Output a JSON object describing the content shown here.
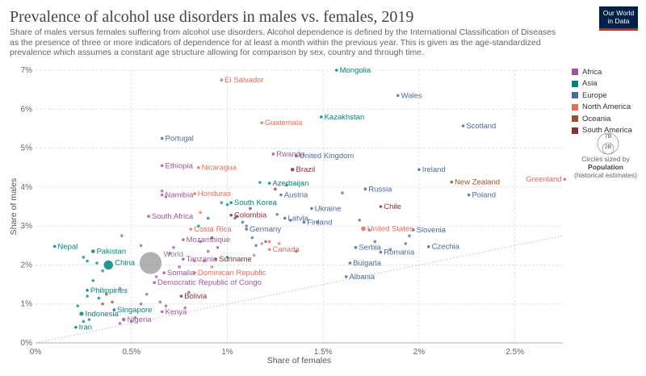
{
  "header": {
    "title": "Prevalence of alcohol use disorders in males vs. females, 2019",
    "subtitle": "Share of males versus females suffering from alcohol use disorders. Alcohol dependence is defined by the International Classification of Diseases as the presence of three or more indicators of dependence for at least a month within the previous year. This is given as the age-standardized prevalence which assumes a constant age structure allowing for comparison by sex, country and through time.",
    "logo_line1": "Our World",
    "logo_line2": "in Data"
  },
  "legend": {
    "items": [
      {
        "label": "Africa",
        "color": "#a2559c"
      },
      {
        "label": "Asia",
        "color": "#00847e"
      },
      {
        "label": "Europe",
        "color": "#4c6a9c"
      },
      {
        "label": "North America",
        "color": "#e56e5a"
      },
      {
        "label": "Oceania",
        "color": "#9a5129"
      },
      {
        "label": "South America",
        "color": "#883039"
      }
    ],
    "size_big": "7B",
    "size_small": "2B",
    "size_note_line1": "Circles sized by",
    "size_note_bold": "Population",
    "size_note_line2": "(historical estimates)"
  },
  "chart_data": {
    "type": "scatter",
    "title": "Prevalence of alcohol use disorders in males vs. females, 2019",
    "xlabel": "Share of females",
    "ylabel": "Share of males",
    "xlim": [
      0,
      2.75
    ],
    "ylim": [
      0,
      7
    ],
    "xticks": [
      "0%",
      "0.5%",
      "1%",
      "1.5%",
      "2%",
      "2.5%"
    ],
    "yticks": [
      "0%",
      "1%",
      "2%",
      "3%",
      "4%",
      "5%",
      "6%",
      "7%"
    ],
    "grid": true,
    "legend_position": "right",
    "reference_line": "y = x",
    "labeled_points": [
      {
        "name": "El Salvador",
        "x": 0.97,
        "y": 6.75,
        "region": "North America",
        "pop": 0.006
      },
      {
        "name": "Mongolia",
        "x": 1.57,
        "y": 7.0,
        "region": "Asia",
        "pop": 0.003
      },
      {
        "name": "Wales",
        "x": 1.89,
        "y": 6.35,
        "region": "Europe",
        "pop": 0.003
      },
      {
        "name": "Kazakhstan",
        "x": 1.49,
        "y": 5.8,
        "region": "Asia",
        "pop": 0.018
      },
      {
        "name": "Scotland",
        "x": 2.23,
        "y": 5.57,
        "region": "Europe",
        "pop": 0.005
      },
      {
        "name": "Guatemala",
        "x": 1.18,
        "y": 5.65,
        "region": "North America",
        "pop": 0.017
      },
      {
        "name": "Portugal",
        "x": 0.66,
        "y": 5.25,
        "region": "Europe",
        "pop": 0.01
      },
      {
        "name": "Rwanda",
        "x": 1.24,
        "y": 4.85,
        "region": "Africa",
        "pop": 0.013
      },
      {
        "name": "United Kingdom",
        "x": 1.36,
        "y": 4.8,
        "region": "Europe",
        "pop": 0.067
      },
      {
        "name": "Ethiopia",
        "x": 0.66,
        "y": 4.55,
        "region": "Africa",
        "pop": 0.112
      },
      {
        "name": "Nicaragua",
        "x": 0.85,
        "y": 4.5,
        "region": "North America",
        "pop": 0.006
      },
      {
        "name": "Brazil",
        "x": 1.34,
        "y": 4.45,
        "region": "South America",
        "pop": 0.211
      },
      {
        "name": "Ireland",
        "x": 2.0,
        "y": 4.45,
        "region": "Europe",
        "pop": 0.005
      },
      {
        "name": "Greenland",
        "x": 2.76,
        "y": 4.2,
        "region": "North America",
        "pop": 0.0001
      },
      {
        "name": "New Zealand",
        "x": 2.17,
        "y": 4.13,
        "region": "Oceania",
        "pop": 0.005
      },
      {
        "name": "Azerbaijan",
        "x": 1.22,
        "y": 4.1,
        "region": "Asia",
        "pop": 0.01
      },
      {
        "name": "Russia",
        "x": 1.72,
        "y": 3.95,
        "region": "Europe",
        "pop": 0.145
      },
      {
        "name": "Namibia",
        "x": 0.66,
        "y": 3.8,
        "region": "Africa",
        "pop": 0.0025
      },
      {
        "name": "Honduras",
        "x": 0.83,
        "y": 3.83,
        "region": "North America",
        "pop": 0.0097
      },
      {
        "name": "Austria",
        "x": 1.28,
        "y": 3.8,
        "region": "Europe",
        "pop": 0.009
      },
      {
        "name": "Poland",
        "x": 2.26,
        "y": 3.8,
        "region": "Europe",
        "pop": 0.038
      },
      {
        "name": "South Korea",
        "x": 1.02,
        "y": 3.6,
        "region": "Asia",
        "pop": 0.052
      },
      {
        "name": "Ukraine",
        "x": 1.44,
        "y": 3.45,
        "region": "Europe",
        "pop": 0.044
      },
      {
        "name": "Chile",
        "x": 1.8,
        "y": 3.5,
        "region": "South America",
        "pop": 0.019
      },
      {
        "name": "South Africa",
        "x": 0.59,
        "y": 3.25,
        "region": "Africa",
        "pop": 0.058
      },
      {
        "name": "Colombia",
        "x": 1.02,
        "y": 3.28,
        "region": "South America",
        "pop": 0.05
      },
      {
        "name": "Latvia",
        "x": 1.3,
        "y": 3.2,
        "region": "Europe",
        "pop": 0.002
      },
      {
        "name": "Finland",
        "x": 1.4,
        "y": 3.1,
        "region": "Europe",
        "pop": 0.0055
      },
      {
        "name": "Costa Rica",
        "x": 0.81,
        "y": 2.92,
        "region": "North America",
        "pop": 0.005
      },
      {
        "name": "Germany",
        "x": 1.1,
        "y": 2.92,
        "region": "Europe",
        "pop": 0.083
      },
      {
        "name": "United States",
        "x": 1.71,
        "y": 2.93,
        "region": "North America",
        "pop": 0.329
      },
      {
        "name": "Slovenia",
        "x": 1.97,
        "y": 2.9,
        "region": "Europe",
        "pop": 0.002
      },
      {
        "name": "Mozambique",
        "x": 0.77,
        "y": 2.65,
        "region": "Africa",
        "pop": 0.03
      },
      {
        "name": "Pakistan",
        "x": 0.3,
        "y": 2.35,
        "region": "Asia",
        "pop": 0.217
      },
      {
        "name": "Nepal",
        "x": 0.1,
        "y": 2.48,
        "region": "Asia",
        "pop": 0.029
      },
      {
        "name": "Czechia",
        "x": 2.05,
        "y": 2.47,
        "region": "Europe",
        "pop": 0.0107
      },
      {
        "name": "Serbia",
        "x": 1.67,
        "y": 2.45,
        "region": "Europe",
        "pop": 0.0069
      },
      {
        "name": "Canada",
        "x": 1.22,
        "y": 2.4,
        "region": "North America",
        "pop": 0.038
      },
      {
        "name": "Romania",
        "x": 1.8,
        "y": 2.33,
        "region": "Europe",
        "pop": 0.019
      },
      {
        "name": "World",
        "x": 0.6,
        "y": 2.05,
        "region": "World",
        "pop": 7.7
      },
      {
        "name": "China",
        "x": 0.38,
        "y": 2.0,
        "region": "Asia",
        "pop": 1.43
      },
      {
        "name": "Tanzania",
        "x": 0.77,
        "y": 2.15,
        "region": "Africa",
        "pop": 0.058
      },
      {
        "name": "Suriname",
        "x": 0.94,
        "y": 2.15,
        "region": "South America",
        "pop": 0.0006
      },
      {
        "name": "Bulgaria",
        "x": 1.64,
        "y": 2.05,
        "region": "Europe",
        "pop": 0.007
      },
      {
        "name": "Somalia",
        "x": 0.67,
        "y": 1.8,
        "region": "Africa",
        "pop": 0.015
      },
      {
        "name": "Dominican Republic",
        "x": 0.83,
        "y": 1.8,
        "region": "North America",
        "pop": 0.0107
      },
      {
        "name": "Albania",
        "x": 1.62,
        "y": 1.7,
        "region": "Europe",
        "pop": 0.0029
      },
      {
        "name": "Democratic Republic of Congo",
        "x": 0.62,
        "y": 1.55,
        "region": "Africa",
        "pop": 0.087
      },
      {
        "name": "Philippines",
        "x": 0.27,
        "y": 1.35,
        "region": "Asia",
        "pop": 0.108
      },
      {
        "name": "Bolivia",
        "x": 0.76,
        "y": 1.2,
        "region": "South America",
        "pop": 0.0115
      },
      {
        "name": "Singapore",
        "x": 0.41,
        "y": 0.85,
        "region": "Asia",
        "pop": 0.0058
      },
      {
        "name": "Indonesia",
        "x": 0.24,
        "y": 0.75,
        "region": "Asia",
        "pop": 0.27
      },
      {
        "name": "Kenya",
        "x": 0.66,
        "y": 0.8,
        "region": "Africa",
        "pop": 0.052
      },
      {
        "name": "Nigeria",
        "x": 0.46,
        "y": 0.6,
        "region": "Africa",
        "pop": 0.2
      },
      {
        "name": "Iran",
        "x": 0.21,
        "y": 0.4,
        "region": "Asia",
        "pop": 0.083
      }
    ],
    "unlabeled_points": [
      {
        "x": 0.27,
        "y": 2.1,
        "region": "Asia"
      },
      {
        "x": 0.25,
        "y": 2.2,
        "region": "Asia"
      },
      {
        "x": 0.32,
        "y": 2.05,
        "region": "Asia"
      },
      {
        "x": 0.35,
        "y": 1.85,
        "region": "Asia"
      },
      {
        "x": 0.3,
        "y": 1.6,
        "region": "Asia"
      },
      {
        "x": 0.27,
        "y": 1.2,
        "region": "Asia"
      },
      {
        "x": 0.33,
        "y": 1.15,
        "region": "Asia"
      },
      {
        "x": 0.22,
        "y": 0.95,
        "region": "Asia"
      },
      {
        "x": 0.28,
        "y": 0.6,
        "region": "Asia"
      },
      {
        "x": 0.25,
        "y": 0.55,
        "region": "Asia"
      },
      {
        "x": 0.35,
        "y": 1.0,
        "region": "Oceania"
      },
      {
        "x": 0.37,
        "y": 1.25,
        "region": "Oceania"
      },
      {
        "x": 0.4,
        "y": 1.05,
        "region": "Oceania"
      },
      {
        "x": 0.44,
        "y": 1.4,
        "region": "Africa"
      },
      {
        "x": 0.5,
        "y": 0.55,
        "region": "Africa"
      },
      {
        "x": 0.52,
        "y": 0.65,
        "region": "Africa"
      },
      {
        "x": 0.44,
        "y": 0.5,
        "region": "Africa"
      },
      {
        "x": 0.55,
        "y": 1.0,
        "region": "Africa"
      },
      {
        "x": 0.58,
        "y": 1.25,
        "region": "Africa"
      },
      {
        "x": 0.63,
        "y": 1.7,
        "region": "Africa"
      },
      {
        "x": 0.7,
        "y": 2.3,
        "region": "Africa"
      },
      {
        "x": 0.72,
        "y": 2.45,
        "region": "Africa"
      },
      {
        "x": 0.75,
        "y": 1.95,
        "region": "Africa"
      },
      {
        "x": 0.68,
        "y": 0.95,
        "region": "Africa"
      },
      {
        "x": 0.65,
        "y": 1.05,
        "region": "Africa"
      },
      {
        "x": 0.78,
        "y": 0.9,
        "region": "Africa"
      },
      {
        "x": 0.8,
        "y": 1.3,
        "region": "Africa"
      },
      {
        "x": 0.88,
        "y": 2.1,
        "region": "Africa"
      },
      {
        "x": 0.9,
        "y": 2.35,
        "region": "Africa"
      },
      {
        "x": 0.86,
        "y": 2.6,
        "region": "Africa"
      },
      {
        "x": 0.95,
        "y": 2.45,
        "region": "Africa"
      },
      {
        "x": 0.68,
        "y": 3.75,
        "region": "Africa"
      },
      {
        "x": 0.66,
        "y": 3.9,
        "region": "Africa"
      },
      {
        "x": 0.97,
        "y": 3.6,
        "region": "Europe"
      },
      {
        "x": 1.04,
        "y": 3.2,
        "region": "Europe"
      },
      {
        "x": 1.08,
        "y": 3.1,
        "region": "Europe"
      },
      {
        "x": 1.1,
        "y": 3.0,
        "region": "Europe"
      },
      {
        "x": 1.13,
        "y": 2.7,
        "region": "Europe"
      },
      {
        "x": 1.15,
        "y": 2.5,
        "region": "Europe"
      },
      {
        "x": 1.2,
        "y": 2.6,
        "region": "Europe"
      },
      {
        "x": 1.26,
        "y": 3.3,
        "region": "Europe"
      },
      {
        "x": 1.33,
        "y": 3.15,
        "region": "Europe"
      },
      {
        "x": 1.36,
        "y": 2.35,
        "region": "Europe"
      },
      {
        "x": 1.47,
        "y": 3.1,
        "region": "Europe"
      },
      {
        "x": 1.6,
        "y": 3.85,
        "region": "Europe"
      },
      {
        "x": 1.69,
        "y": 3.15,
        "region": "Europe"
      },
      {
        "x": 1.74,
        "y": 2.9,
        "region": "Europe"
      },
      {
        "x": 1.77,
        "y": 2.6,
        "region": "Europe"
      },
      {
        "x": 1.93,
        "y": 2.55,
        "region": "Europe"
      },
      {
        "x": 1.95,
        "y": 2.75,
        "region": "Europe"
      },
      {
        "x": 1.85,
        "y": 2.4,
        "region": "Europe"
      },
      {
        "x": 1.05,
        "y": 3.25,
        "region": "South America"
      },
      {
        "x": 1.12,
        "y": 3.45,
        "region": "South America"
      },
      {
        "x": 1.25,
        "y": 3.95,
        "region": "South America"
      },
      {
        "x": 0.92,
        "y": 2.7,
        "region": "South America"
      },
      {
        "x": 1.17,
        "y": 4.12,
        "region": "Asia"
      },
      {
        "x": 1.31,
        "y": 4.05,
        "region": "Asia"
      },
      {
        "x": 1.0,
        "y": 3.55,
        "region": "Asia"
      },
      {
        "x": 0.9,
        "y": 3.2,
        "region": "Asia"
      },
      {
        "x": 0.85,
        "y": 3.0,
        "region": "Asia"
      },
      {
        "x": 1.0,
        "y": 2.2,
        "region": "Asia"
      },
      {
        "x": 0.86,
        "y": 3.35,
        "region": "North America"
      },
      {
        "x": 1.14,
        "y": 2.25,
        "region": "North America"
      },
      {
        "x": 0.83,
        "y": 2.1,
        "region": "North America"
      },
      {
        "x": 1.18,
        "y": 2.55,
        "region": "North America"
      },
      {
        "x": 1.22,
        "y": 2.6,
        "region": "North America"
      },
      {
        "x": 1.27,
        "y": 2.55,
        "region": "North America"
      },
      {
        "x": 0.92,
        "y": 1.95,
        "region": "North America"
      },
      {
        "x": 0.45,
        "y": 2.75,
        "region": "Africa"
      },
      {
        "x": 0.55,
        "y": 2.5,
        "region": "Africa"
      }
    ]
  }
}
